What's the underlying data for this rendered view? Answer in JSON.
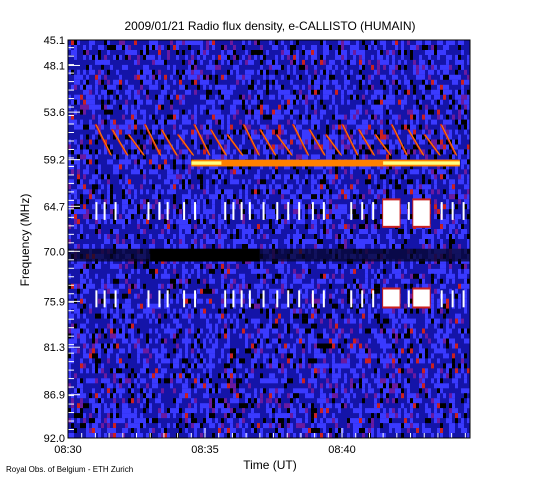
{
  "chart_data": {
    "type": "heatmap",
    "title": "2009/01/21  Radio flux density, e-CALLISTO (HUMAIN)",
    "xlabel": "Time (UT)",
    "ylabel": "Frequency (MHz)",
    "x_ticks": [
      "08:30",
      "08:35",
      "08:40"
    ],
    "x_tick_minutes": [
      0,
      5,
      10
    ],
    "xlim_minutes": [
      0,
      14.67
    ],
    "y_ticks": [
      "45.1",
      "48.1",
      "53.6",
      "59.2",
      "64.7",
      "70.0",
      "75.9",
      "81.3",
      "86.9",
      "92.0"
    ],
    "y_tick_values": [
      45.1,
      48.1,
      53.6,
      59.2,
      64.7,
      70.0,
      75.9,
      81.3,
      86.9,
      92.0
    ],
    "ylim": [
      92.0,
      45.1
    ],
    "y_axis_direction": "frequency increases downward",
    "colormap": [
      "#000000",
      "#1a1acc",
      "#3a3aff",
      "#6a1aa0",
      "#cc2020",
      "#ff8000",
      "#ffff80",
      "#ffffff"
    ],
    "features": [
      {
        "kind": "drifting bursts",
        "freq_range": [
          55.0,
          59.0
        ],
        "time_range_min": [
          1.0,
          14.3
        ]
      },
      {
        "kind": "bright band",
        "freq_mhz": 59.6,
        "time_range_min": [
          4.5,
          14.3
        ]
      },
      {
        "kind": "bright blocks",
        "freq_range": [
          64.0,
          67.0
        ],
        "time_range_min": [
          11.5,
          13.2
        ]
      },
      {
        "kind": "bright blocks",
        "freq_range": [
          74.5,
          76.5
        ],
        "time_range_min": [
          11.5,
          13.2
        ]
      },
      {
        "kind": "dark band",
        "freq_mhz": 70.0,
        "time_range_min": [
          0,
          14.67
        ]
      }
    ]
  },
  "footer": {
    "credit": "Royal Obs. of Belgium - ETH Zurich"
  }
}
